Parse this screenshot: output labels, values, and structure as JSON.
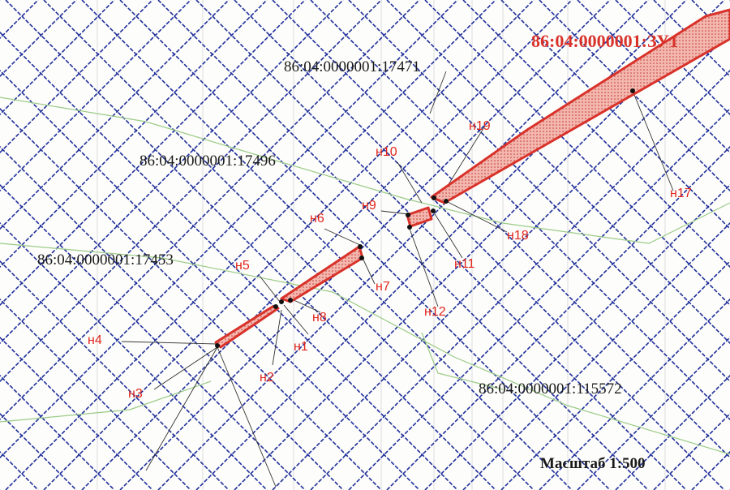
{
  "map": {
    "parcels": [
      {
        "id": "parcel-17471",
        "label": "86:04:0000001:17471"
      },
      {
        "id": "parcel-17496",
        "label": "86:04:0000001:17496"
      },
      {
        "id": "parcel-17453",
        "label": "86:04:0000001:17453"
      },
      {
        "id": "parcel-115572",
        "label": "86:04:0000001:115572"
      }
    ],
    "plot_label": "86:04:0000001:ЗУ1",
    "points": [
      "н1",
      "н2",
      "н3",
      "н4",
      "н5",
      "н6",
      "н7",
      "н8",
      "н9",
      "н10",
      "н11",
      "н12",
      "н17",
      "н18",
      "н19"
    ],
    "scale_label": "Масштаб 1:500",
    "colors": {
      "grid": "#1f2f9a",
      "plot_outline": "#d8322a",
      "plot_fill": "#e86a5a",
      "labels_points": "#e0261c",
      "leader_lines": "#333333",
      "green_lines": "#9acb86"
    }
  }
}
